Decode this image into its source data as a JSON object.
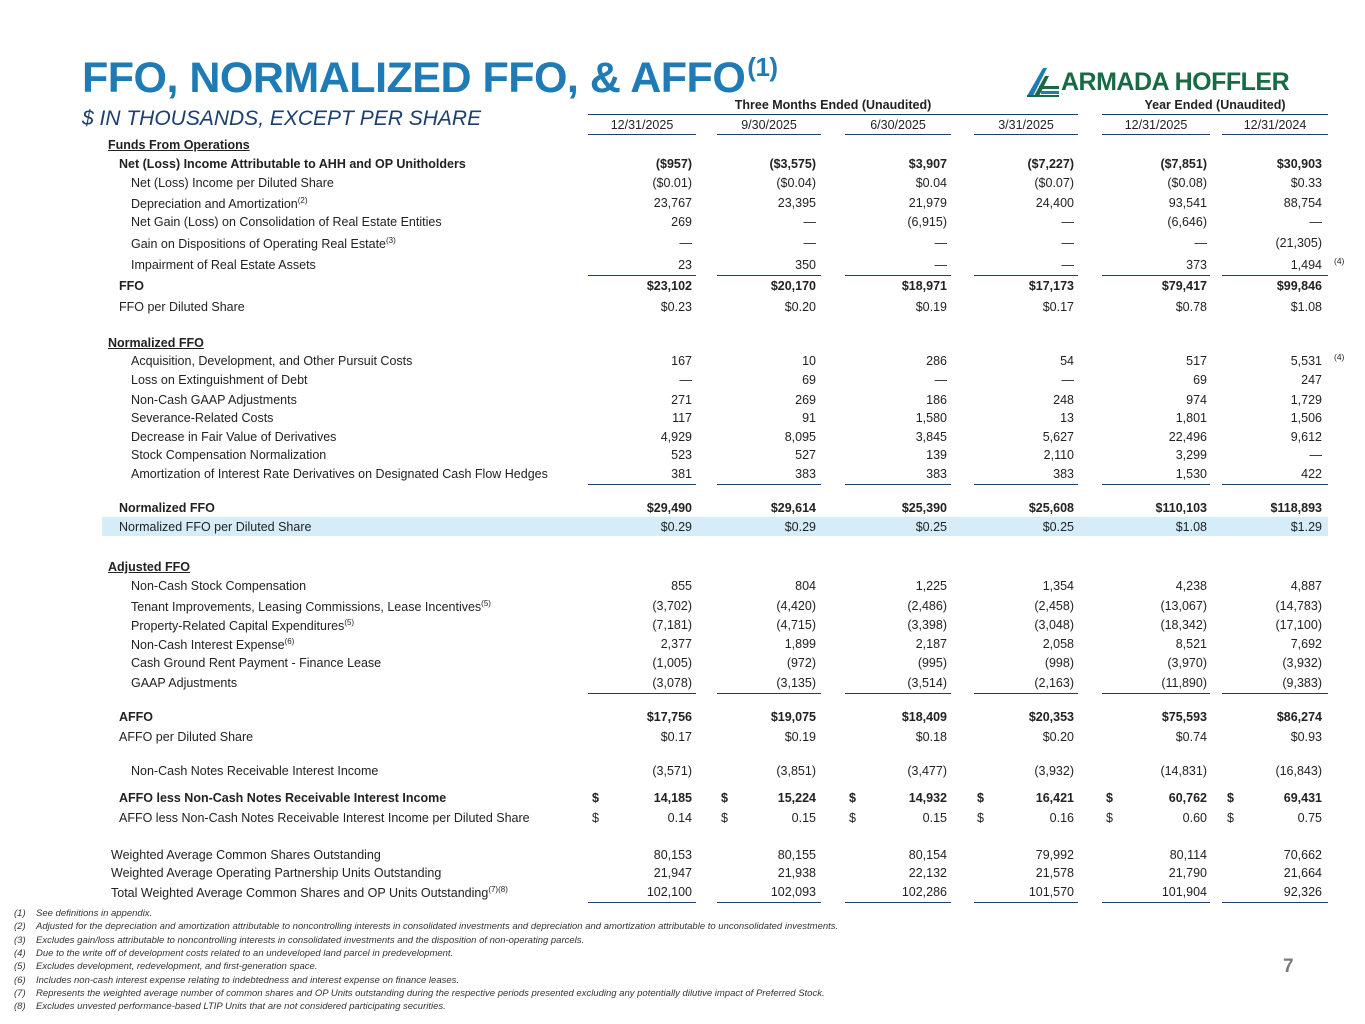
{
  "header": {
    "title": "FFO, NORMALIZED FFO, & AFFO",
    "title_note": "(1)",
    "subtitle": "$ IN THOUSANDS, EXCEPT PER SHARE",
    "logo_text": "ARMADA HOFFLER"
  },
  "table": {
    "group_headers": [
      "Three Months Ended (Unaudited)",
      "Year Ended (Unaudited)"
    ],
    "columns": [
      "12/31/2025",
      "9/30/2025",
      "6/30/2025",
      "3/31/2025",
      "12/31/2025",
      "12/31/2024"
    ],
    "rows": [
      {
        "label": "Funds From Operations",
        "style": "section",
        "values": []
      },
      {
        "label": "Net (Loss) Income Attributable to AHH and OP Unitholders",
        "style": "bold",
        "values": [
          "($957)",
          "($3,575)",
          "$3,907",
          "($7,227)",
          "($7,851)",
          "$30,903"
        ]
      },
      {
        "label": "Net (Loss) Income per Diluted Share",
        "style": "sub",
        "values": [
          "($0.01)",
          "($0.04)",
          "$0.04",
          "($0.07)",
          "($0.08)",
          "$0.33"
        ]
      },
      {
        "label": "Depreciation and Amortization",
        "sup": "(2)",
        "style": "sub",
        "values": [
          "23,767",
          "23,395",
          "21,979",
          "24,400",
          "93,541",
          "88,754"
        ]
      },
      {
        "label": "Net Gain (Loss) on Consolidation of Real Estate Entities",
        "style": "sub",
        "values": [
          "269",
          "—",
          "(6,915)",
          "—",
          "(6,646)",
          "—"
        ]
      },
      {
        "label": "Gain on Dispositions of Operating Real Estate",
        "sup": "(3)",
        "style": "sub",
        "values": [
          "—",
          "—",
          "—",
          "—",
          "—",
          "(21,305)"
        ]
      },
      {
        "label": "Impairment of Real Estate Assets",
        "style": "sub",
        "values": [
          "23",
          "350",
          "—",
          "—",
          "373",
          "1,494"
        ],
        "note": "(4)"
      },
      {
        "label": "FFO",
        "style": "bold",
        "values": [
          "$23,102",
          "$20,170",
          "$18,971",
          "$17,173",
          "$79,417",
          "$99,846"
        ]
      },
      {
        "label": "FFO per Diluted Share",
        "style": "plain",
        "values": [
          "$0.23",
          "$0.20",
          "$0.19",
          "$0.17",
          "$0.78",
          "$1.08"
        ]
      },
      {
        "label": "Normalized FFO",
        "style": "section",
        "values": []
      },
      {
        "label": "Acquisition, Development, and Other Pursuit Costs",
        "style": "sub",
        "values": [
          "167",
          "10",
          "286",
          "54",
          "517",
          "5,531"
        ],
        "note": "(4)"
      },
      {
        "label": "Loss on Extinguishment of Debt",
        "style": "sub",
        "values": [
          "—",
          "69",
          "—",
          "—",
          "69",
          "247"
        ]
      },
      {
        "label": "Non-Cash GAAP Adjustments",
        "style": "sub",
        "values": [
          "271",
          "269",
          "186",
          "248",
          "974",
          "1,729"
        ]
      },
      {
        "label": "Severance-Related Costs",
        "style": "sub",
        "values": [
          "117",
          "91",
          "1,580",
          "13",
          "1,801",
          "1,506"
        ]
      },
      {
        "label": "Decrease in Fair Value of Derivatives",
        "style": "sub",
        "values": [
          "4,929",
          "8,095",
          "3,845",
          "5,627",
          "22,496",
          "9,612"
        ]
      },
      {
        "label": "Stock Compensation Normalization",
        "style": "sub",
        "values": [
          "523",
          "527",
          "139",
          "2,110",
          "3,299",
          "—"
        ]
      },
      {
        "label": "Amortization of Interest Rate Derivatives on Designated Cash Flow Hedges",
        "style": "sub",
        "values": [
          "381",
          "383",
          "383",
          "383",
          "1,530",
          "422"
        ]
      },
      {
        "label": "Normalized FFO",
        "style": "bold",
        "values": [
          "$29,490",
          "$29,614",
          "$25,390",
          "$25,608",
          "$110,103",
          "$118,893"
        ]
      },
      {
        "label": "Normalized FFO per Diluted Share",
        "style": "plain",
        "values": [
          "$0.29",
          "$0.29",
          "$0.25",
          "$0.25",
          "$1.08",
          "$1.29"
        ]
      },
      {
        "label": "Adjusted FFO",
        "style": "section",
        "values": []
      },
      {
        "label": "Non-Cash Stock Compensation",
        "style": "sub",
        "values": [
          "855",
          "804",
          "1,225",
          "1,354",
          "4,238",
          "4,887"
        ]
      },
      {
        "label": "Tenant Improvements, Leasing Commissions, Lease Incentives",
        "sup": "(5)",
        "style": "sub",
        "values": [
          "(3,702)",
          "(4,420)",
          "(2,486)",
          "(2,458)",
          "(13,067)",
          "(14,783)"
        ]
      },
      {
        "label": "Property-Related Capital Expenditures",
        "sup": "(5)",
        "style": "sub",
        "values": [
          "(7,181)",
          "(4,715)",
          "(3,398)",
          "(3,048)",
          "(18,342)",
          "(17,100)"
        ]
      },
      {
        "label": "Non-Cash Interest Expense",
        "sup": "(6)",
        "style": "sub",
        "values": [
          "2,377",
          "1,899",
          "2,187",
          "2,058",
          "8,521",
          "7,692"
        ]
      },
      {
        "label": "Cash Ground Rent Payment - Finance Lease",
        "style": "sub",
        "values": [
          "(1,005)",
          "(972)",
          "(995)",
          "(998)",
          "(3,970)",
          "(3,932)"
        ]
      },
      {
        "label": "GAAP Adjustments",
        "style": "sub",
        "values": [
          "(3,078)",
          "(3,135)",
          "(3,514)",
          "(2,163)",
          "(11,890)",
          "(9,383)"
        ]
      },
      {
        "label": "AFFO",
        "style": "bold",
        "values": [
          "$17,756",
          "$19,075",
          "$18,409",
          "$20,353",
          "$75,593",
          "$86,274"
        ]
      },
      {
        "label": "AFFO per Diluted Share",
        "style": "plain",
        "values": [
          "$0.17",
          "$0.19",
          "$0.18",
          "$0.20",
          "$0.74",
          "$0.93"
        ]
      },
      {
        "label": "Non-Cash Notes Receivable Interest Income",
        "style": "sub",
        "values": [
          "(3,571)",
          "(3,851)",
          "(3,477)",
          "(3,932)",
          "(14,831)",
          "(16,843)"
        ]
      },
      {
        "label": "AFFO less Non-Cash Notes Receivable Interest Income",
        "style": "bold",
        "currency": "$",
        "values": [
          "14,185",
          "15,224",
          "14,932",
          "16,421",
          "60,762",
          "69,431"
        ]
      },
      {
        "label": "AFFO less Non-Cash Notes Receivable Interest Income per Diluted Share",
        "style": "plain",
        "currency": "$",
        "values": [
          "0.14",
          "0.15",
          "0.15",
          "0.16",
          "0.60",
          "0.75"
        ]
      },
      {
        "label": "Weighted Average Common Shares Outstanding",
        "style": "share",
        "values": [
          "80,153",
          "80,155",
          "80,154",
          "79,992",
          "80,114",
          "70,662"
        ]
      },
      {
        "label": "Weighted Average Operating Partnership Units Outstanding",
        "style": "share",
        "values": [
          "21,947",
          "21,938",
          "22,132",
          "21,578",
          "21,790",
          "21,664"
        ]
      },
      {
        "label": "Total Weighted Average Common Shares and OP Units Outstanding",
        "sup": "(7)(8)",
        "style": "share",
        "values": [
          "102,100",
          "102,093",
          "102,286",
          "101,570",
          "101,904",
          "92,326"
        ]
      }
    ]
  },
  "footnotes": [
    {
      "num": "(1)",
      "text": "See definitions in appendix."
    },
    {
      "num": "(2)",
      "text": "Adjusted for the depreciation and amortization attributable to noncontrolling interests in consolidated investments and depreciation and amortization attributable to unconsolidated investments."
    },
    {
      "num": "(3)",
      "text": "Excludes gain/loss attributable to noncontrolling interests in consolidated investments and the disposition of non-operating parcels."
    },
    {
      "num": "(4)",
      "text": "Due to the write off of development costs related to an undeveloped land parcel in predevelopment."
    },
    {
      "num": "(5)",
      "text": "Excludes development, redevelopment, and first-generation space."
    },
    {
      "num": "(6)",
      "text": "Includes non-cash interest expense relating to indebtedness and interest expense on finance leases."
    },
    {
      "num": "(7)",
      "text": "Represents the weighted average number of common shares and OP Units outstanding during the respective periods presented excluding any potentially dilutive impact of Preferred Stock."
    },
    {
      "num": "(8)",
      "text": "Excludes unvested performance-based LTIP Units that are not considered participating securities."
    }
  ],
  "page_number": "7",
  "colors": {
    "title": "#1e7bb5",
    "subtitle": "#1d3f6e",
    "logo": "#196a44",
    "highlight": "#d4edf9"
  }
}
